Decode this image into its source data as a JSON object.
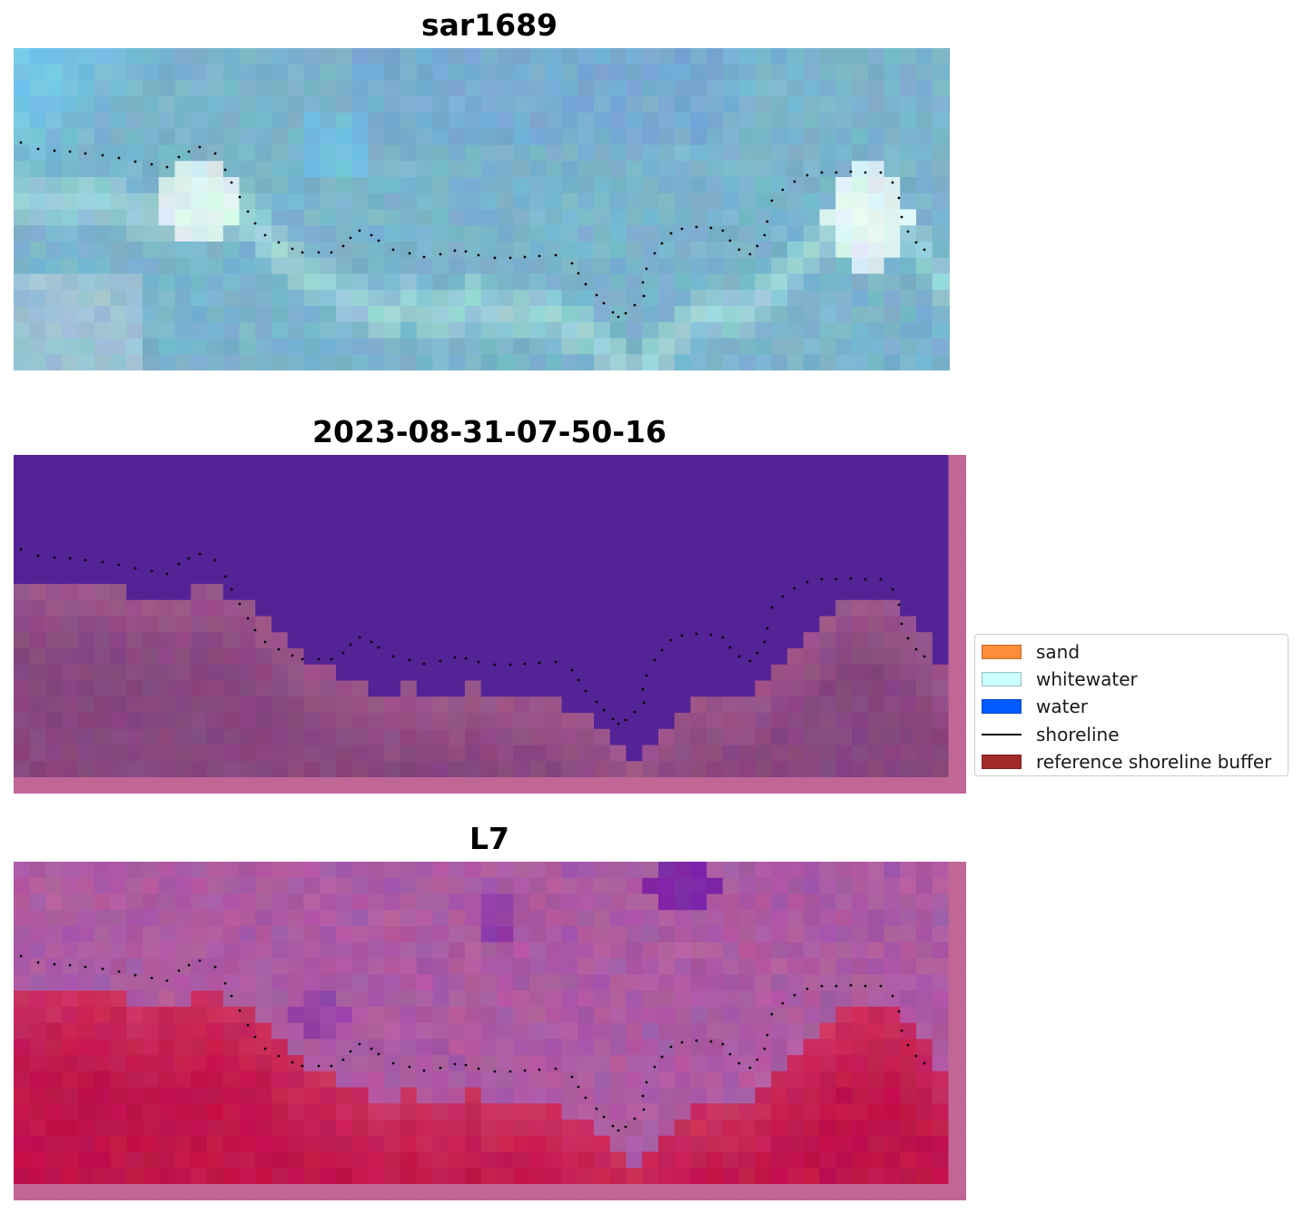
{
  "panels": [
    {
      "title": "sar1689",
      "kind": "rgb"
    },
    {
      "title": "2023-08-31-07-50-16",
      "kind": "classified"
    },
    {
      "title": "L7",
      "kind": "ndwi"
    }
  ],
  "legend": {
    "items": [
      {
        "label": "sand",
        "color": "#ff8c3a",
        "symbol": "patch"
      },
      {
        "label": "whitewater",
        "color": "#c9ffff",
        "symbol": "patch"
      },
      {
        "label": "water",
        "color": "#005aff",
        "symbol": "patch"
      },
      {
        "label": "shoreline",
        "color": "#000000",
        "symbol": "line"
      },
      {
        "label": "reference shoreline buffer",
        "color": "#a42a2a",
        "symbol": "patch"
      }
    ]
  },
  "colors": {
    "classified_water": "#542396",
    "classified_land": "#87477f",
    "buffer_margin": "#c06796",
    "sar_base": "#7ab4cc",
    "ndwi_land": "#c0144a",
    "ndwi_water": "#a45aa6",
    "shoreline_dots": "#000000"
  }
}
